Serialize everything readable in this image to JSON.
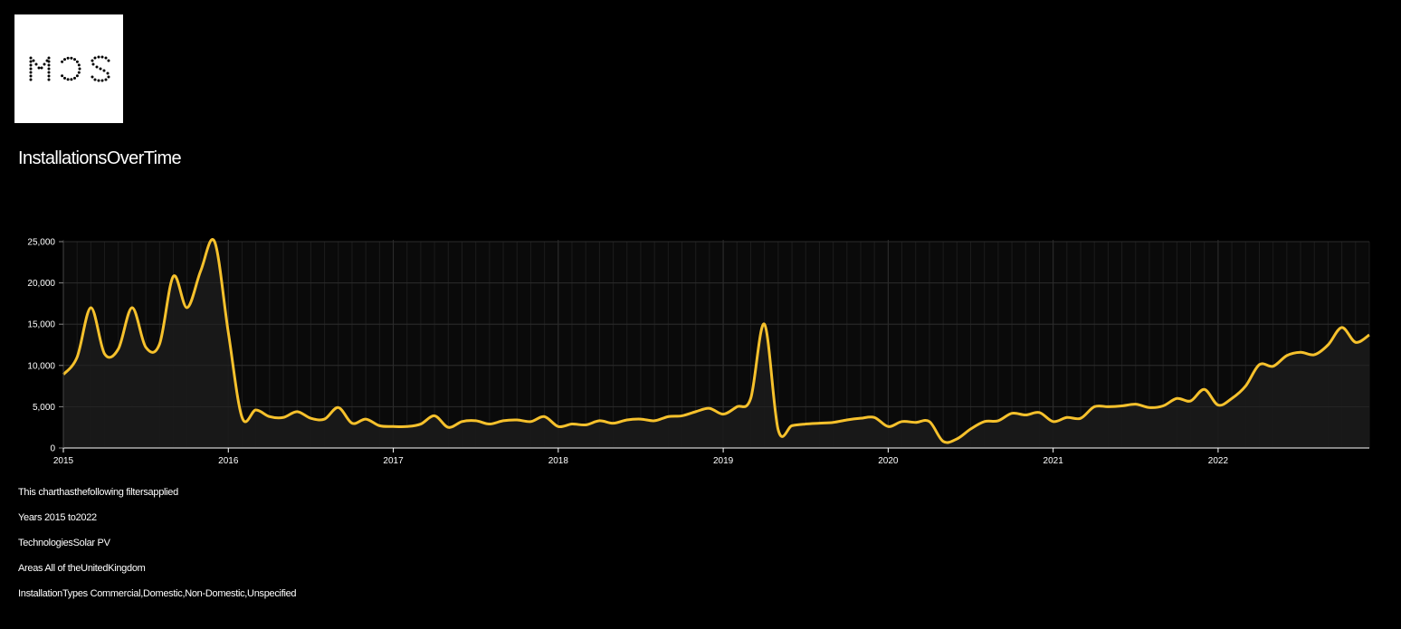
{
  "logo": {
    "text": "MCS"
  },
  "page_title": "InstallationsOverTime",
  "filters": {
    "intro": "This charthasthefollowing filtersapplied",
    "years": "Years 2015 to2022",
    "technologies": "TechnologiesSolar PV",
    "areas": "Areas All of theUnitedKingdom",
    "installation_types": "InstallationTypes Commercial,Domestic,Non-Domestic,Unspecified"
  },
  "colors": {
    "background": "#000000",
    "line": "#f6c12c",
    "area": "#1a1a1a",
    "grid": "#2e2e2e",
    "axis": "#ffffff"
  },
  "chart_data": {
    "type": "area",
    "title": "",
    "xlabel": "",
    "ylabel": "",
    "x_range": [
      "2015-01",
      "2022-12"
    ],
    "ylim": [
      0,
      25000
    ],
    "grid": true,
    "yticks": [
      "0",
      "5,000",
      "10,000",
      "15,000",
      "20,000",
      "25,000"
    ],
    "xticks": [
      "2015",
      "2016",
      "2017",
      "2018",
      "2019",
      "2020",
      "2021",
      "2022"
    ],
    "series": [
      {
        "x": [
          "2015-01",
          "2015-02",
          "2015-03",
          "2015-04",
          "2015-05",
          "2015-06",
          "2015-07",
          "2015-08",
          "2015-09",
          "2015-10",
          "2015-11",
          "2015-12",
          "2016-01",
          "2016-02",
          "2016-03",
          "2016-04",
          "2016-05",
          "2016-06",
          "2016-07",
          "2016-08",
          "2016-09",
          "2016-10",
          "2016-11",
          "2016-12",
          "2017-01",
          "2017-02",
          "2017-03",
          "2017-04",
          "2017-05",
          "2017-06",
          "2017-07",
          "2017-08",
          "2017-09",
          "2017-10",
          "2017-11",
          "2017-12",
          "2018-01",
          "2018-02",
          "2018-03",
          "2018-04",
          "2018-05",
          "2018-06",
          "2018-07",
          "2018-08",
          "2018-09",
          "2018-10",
          "2018-11",
          "2018-12",
          "2019-01",
          "2019-02",
          "2019-03",
          "2019-04",
          "2019-05",
          "2019-06",
          "2019-07",
          "2019-08",
          "2019-09",
          "2019-10",
          "2019-11",
          "2019-12",
          "2020-01",
          "2020-02",
          "2020-03",
          "2020-04",
          "2020-05",
          "2020-06",
          "2020-07",
          "2020-08",
          "2020-09",
          "2020-10",
          "2020-11",
          "2020-12",
          "2021-01",
          "2021-02",
          "2021-03",
          "2021-04",
          "2021-05",
          "2021-06",
          "2021-07",
          "2021-08",
          "2021-09",
          "2021-10",
          "2021-11",
          "2021-12",
          "2022-01",
          "2022-02",
          "2022-03",
          "2022-04",
          "2022-05",
          "2022-06",
          "2022-07",
          "2022-08",
          "2022-09",
          "2022-10",
          "2022-11",
          "2022-12"
        ],
        "y": [
          8900,
          11000,
          17000,
          11400,
          12000,
          17000,
          12200,
          12600,
          20800,
          17000,
          21500,
          25000,
          14000,
          3700,
          4600,
          3800,
          3700,
          4400,
          3600,
          3500,
          4900,
          3000,
          3500,
          2700,
          2600,
          2600,
          2900,
          3900,
          2500,
          3200,
          3300,
          2900,
          3300,
          3400,
          3200,
          3800,
          2600,
          2900,
          2800,
          3300,
          3000,
          3400,
          3500,
          3300,
          3800,
          3900,
          4400,
          4800,
          4100,
          5000,
          6000,
          15000,
          2200,
          2700,
          2900,
          3000,
          3100,
          3400,
          3600,
          3700,
          2600,
          3200,
          3100,
          3200,
          800,
          1100,
          2300,
          3200,
          3300,
          4200,
          4000,
          4300,
          3200,
          3700,
          3600,
          5000,
          5000,
          5100,
          5300,
          4900,
          5100,
          6000,
          5700,
          7100,
          5200,
          6000,
          7500,
          10100,
          9900,
          11200,
          11600,
          11300,
          12500,
          14600,
          12800,
          13700
        ]
      }
    ]
  }
}
